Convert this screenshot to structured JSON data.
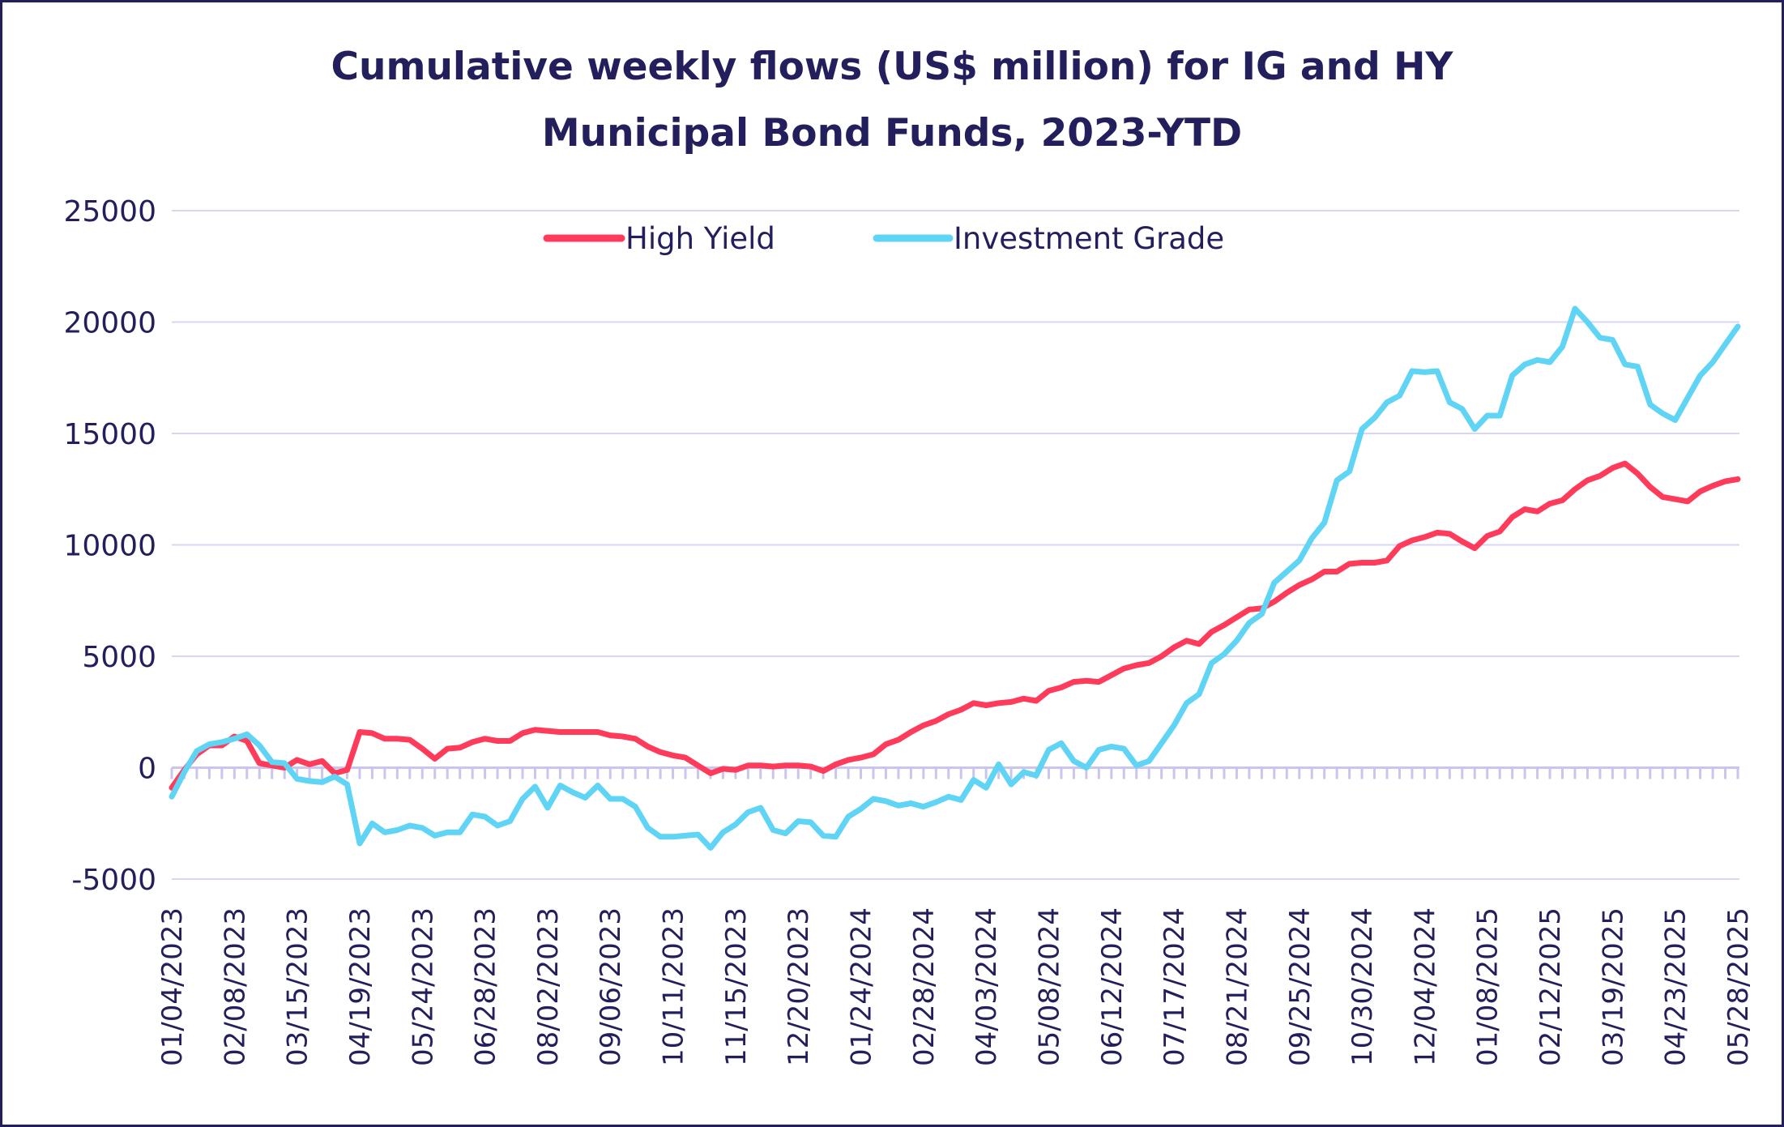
{
  "chart_data": {
    "type": "line",
    "title_line1": "Cumulative weekly flows (US$ million) for IG and HY",
    "title_line2": "Municipal Bond Funds, 2023-YTD",
    "xlabel": "",
    "ylabel": "",
    "ylim": [
      -5000,
      25000
    ],
    "y_ticks": [
      25000,
      20000,
      15000,
      10000,
      5000,
      0,
      -5000
    ],
    "y_tick_labels": [
      "25000",
      "20000",
      "15000",
      "10000",
      "5000",
      "0",
      "-5000"
    ],
    "x_tick_labels": [
      "01/04/2023",
      "02/08/2023",
      "03/15/2023",
      "04/19/2023",
      "05/24/2023",
      "06/28/2023",
      "08/02/2023",
      "09/06/2023",
      "10/11/2023",
      "11/15/2023",
      "12/20/2023",
      "01/24/2024",
      "02/28/2024",
      "04/03/2024",
      "05/08/2024",
      "06/12/2024",
      "07/17/2024",
      "08/21/2024",
      "09/25/2024",
      "10/30/2024",
      "12/04/2024",
      "01/08/2025",
      "02/12/2025",
      "03/19/2025",
      "04/23/2025",
      "05/28/2025"
    ],
    "x_tick_week_index": [
      0,
      5,
      10,
      15,
      20,
      25,
      30,
      35,
      40,
      45,
      50,
      55,
      60,
      65,
      70,
      75,
      80,
      85,
      90,
      95,
      100,
      105,
      110,
      115,
      120,
      125
    ],
    "num_weeks": 126,
    "grid": true,
    "legend_position": "top-center",
    "series": [
      {
        "name": "High Yield",
        "color": "#ff3b5c",
        "points": [
          [
            0,
            -900
          ],
          [
            1,
            -100
          ],
          [
            2,
            600
          ],
          [
            3,
            1000
          ],
          [
            4,
            1000
          ],
          [
            5,
            1400
          ],
          [
            6,
            1200
          ],
          [
            7,
            200
          ],
          [
            8,
            100
          ],
          [
            9,
            0
          ],
          [
            10,
            350
          ],
          [
            11,
            150
          ],
          [
            12,
            300
          ],
          [
            13,
            -250
          ],
          [
            14,
            -100
          ],
          [
            15,
            1600
          ],
          [
            16,
            1550
          ],
          [
            17,
            1300
          ],
          [
            18,
            1300
          ],
          [
            19,
            1250
          ],
          [
            20,
            850
          ],
          [
            21,
            400
          ],
          [
            22,
            850
          ],
          [
            23,
            900
          ],
          [
            24,
            1150
          ],
          [
            25,
            1300
          ],
          [
            26,
            1200
          ],
          [
            27,
            1200
          ],
          [
            28,
            1550
          ],
          [
            29,
            1700
          ],
          [
            30,
            1650
          ],
          [
            31,
            1600
          ],
          [
            32,
            1600
          ],
          [
            33,
            1600
          ],
          [
            34,
            1600
          ],
          [
            35,
            1450
          ],
          [
            36,
            1400
          ],
          [
            37,
            1300
          ],
          [
            38,
            950
          ],
          [
            39,
            700
          ],
          [
            40,
            550
          ],
          [
            41,
            450
          ],
          [
            42,
            100
          ],
          [
            43,
            -250
          ],
          [
            44,
            -50
          ],
          [
            45,
            -100
          ],
          [
            46,
            100
          ],
          [
            47,
            100
          ],
          [
            48,
            50
          ],
          [
            49,
            100
          ],
          [
            50,
            100
          ],
          [
            51,
            50
          ],
          [
            52,
            -150
          ],
          [
            53,
            150
          ],
          [
            54,
            350
          ],
          [
            55,
            450
          ],
          [
            56,
            600
          ],
          [
            57,
            1050
          ],
          [
            58,
            1250
          ],
          [
            59,
            1600
          ],
          [
            60,
            1900
          ],
          [
            61,
            2100
          ],
          [
            62,
            2400
          ],
          [
            63,
            2600
          ],
          [
            64,
            2900
          ],
          [
            65,
            2800
          ],
          [
            66,
            2900
          ],
          [
            67,
            2950
          ],
          [
            68,
            3100
          ],
          [
            69,
            3000
          ],
          [
            70,
            3450
          ],
          [
            71,
            3600
          ],
          [
            72,
            3850
          ],
          [
            73,
            3900
          ],
          [
            74,
            3850
          ],
          [
            75,
            4150
          ],
          [
            76,
            4450
          ],
          [
            77,
            4600
          ],
          [
            78,
            4700
          ],
          [
            79,
            5000
          ],
          [
            80,
            5400
          ],
          [
            81,
            5700
          ],
          [
            82,
            5550
          ],
          [
            83,
            6100
          ],
          [
            84,
            6400
          ],
          [
            85,
            6750
          ],
          [
            86,
            7100
          ],
          [
            87,
            7150
          ],
          [
            88,
            7450
          ],
          [
            89,
            7850
          ],
          [
            90,
            8200
          ],
          [
            91,
            8450
          ],
          [
            92,
            8800
          ],
          [
            93,
            8800
          ],
          [
            94,
            9150
          ],
          [
            95,
            9200
          ],
          [
            96,
            9200
          ],
          [
            97,
            9300
          ],
          [
            98,
            9950
          ],
          [
            99,
            10200
          ],
          [
            100,
            10350
          ],
          [
            101,
            10550
          ],
          [
            102,
            10500
          ],
          [
            103,
            10150
          ],
          [
            104,
            9850
          ],
          [
            105,
            10400
          ],
          [
            106,
            10600
          ],
          [
            107,
            11250
          ],
          [
            108,
            11600
          ],
          [
            109,
            11500
          ],
          [
            110,
            11850
          ],
          [
            111,
            12000
          ],
          [
            112,
            12500
          ],
          [
            113,
            12900
          ],
          [
            114,
            13100
          ],
          [
            115,
            13450
          ],
          [
            116,
            13650
          ],
          [
            117,
            13200
          ],
          [
            118,
            12600
          ],
          [
            119,
            12150
          ],
          [
            120,
            12050
          ],
          [
            121,
            11950
          ],
          [
            122,
            12400
          ],
          [
            123,
            12650
          ],
          [
            124,
            12850
          ],
          [
            125,
            12950
          ]
        ]
      },
      {
        "name": "Investment Grade",
        "color": "#5fd4f4",
        "points": [
          [
            0,
            -1300
          ],
          [
            1,
            -200
          ],
          [
            2,
            750
          ],
          [
            3,
            1050
          ],
          [
            4,
            1150
          ],
          [
            5,
            1300
          ],
          [
            6,
            1500
          ],
          [
            7,
            1000
          ],
          [
            8,
            250
          ],
          [
            9,
            200
          ],
          [
            10,
            -500
          ],
          [
            11,
            -600
          ],
          [
            12,
            -650
          ],
          [
            13,
            -400
          ],
          [
            14,
            -750
          ],
          [
            15,
            -3400
          ],
          [
            16,
            -2500
          ],
          [
            17,
            -2900
          ],
          [
            18,
            -2800
          ],
          [
            19,
            -2600
          ],
          [
            20,
            -2700
          ],
          [
            21,
            -3050
          ],
          [
            22,
            -2900
          ],
          [
            23,
            -2900
          ],
          [
            24,
            -2100
          ],
          [
            25,
            -2200
          ],
          [
            26,
            -2600
          ],
          [
            27,
            -2400
          ],
          [
            28,
            -1400
          ],
          [
            29,
            -850
          ],
          [
            30,
            -1800
          ],
          [
            31,
            -800
          ],
          [
            32,
            -1100
          ],
          [
            33,
            -1350
          ],
          [
            34,
            -800
          ],
          [
            35,
            -1400
          ],
          [
            36,
            -1400
          ],
          [
            37,
            -1750
          ],
          [
            38,
            -2700
          ],
          [
            39,
            -3100
          ],
          [
            40,
            -3100
          ],
          [
            41,
            -3050
          ],
          [
            42,
            -3000
          ],
          [
            43,
            -3600
          ],
          [
            44,
            -2900
          ],
          [
            45,
            -2550
          ],
          [
            46,
            -2000
          ],
          [
            47,
            -1800
          ],
          [
            48,
            -2800
          ],
          [
            49,
            -2950
          ],
          [
            50,
            -2400
          ],
          [
            51,
            -2450
          ],
          [
            52,
            -3050
          ],
          [
            53,
            -3100
          ],
          [
            54,
            -2200
          ],
          [
            55,
            -1850
          ],
          [
            56,
            -1400
          ],
          [
            57,
            -1500
          ],
          [
            58,
            -1700
          ],
          [
            59,
            -1600
          ],
          [
            60,
            -1750
          ],
          [
            61,
            -1550
          ],
          [
            62,
            -1300
          ],
          [
            63,
            -1450
          ],
          [
            64,
            -550
          ],
          [
            65,
            -900
          ],
          [
            66,
            150
          ],
          [
            67,
            -750
          ],
          [
            68,
            -200
          ],
          [
            69,
            -350
          ],
          [
            70,
            800
          ],
          [
            71,
            1100
          ],
          [
            72,
            300
          ],
          [
            73,
            0
          ],
          [
            74,
            800
          ],
          [
            75,
            950
          ],
          [
            76,
            850
          ],
          [
            77,
            100
          ],
          [
            78,
            300
          ],
          [
            79,
            1100
          ],
          [
            80,
            1900
          ],
          [
            81,
            2900
          ],
          [
            82,
            3300
          ],
          [
            83,
            4700
          ],
          [
            84,
            5100
          ],
          [
            85,
            5700
          ],
          [
            86,
            6500
          ],
          [
            87,
            6900
          ],
          [
            88,
            8300
          ],
          [
            89,
            8800
          ],
          [
            90,
            9300
          ],
          [
            91,
            10300
          ],
          [
            92,
            11000
          ],
          [
            93,
            12900
          ],
          [
            94,
            13300
          ],
          [
            95,
            15200
          ],
          [
            96,
            15700
          ],
          [
            97,
            16400
          ],
          [
            98,
            16700
          ],
          [
            99,
            17800
          ],
          [
            100,
            17750
          ],
          [
            101,
            17800
          ],
          [
            102,
            16400
          ],
          [
            103,
            16100
          ],
          [
            104,
            15200
          ],
          [
            105,
            15800
          ],
          [
            106,
            15800
          ],
          [
            107,
            17600
          ],
          [
            108,
            18100
          ],
          [
            109,
            18300
          ],
          [
            110,
            18200
          ],
          [
            111,
            18900
          ],
          [
            112,
            20600
          ],
          [
            113,
            20000
          ],
          [
            114,
            19300
          ],
          [
            115,
            19200
          ],
          [
            116,
            18100
          ],
          [
            117,
            18000
          ],
          [
            118,
            16300
          ],
          [
            119,
            15900
          ],
          [
            120,
            15600
          ],
          [
            121,
            16600
          ],
          [
            122,
            17600
          ],
          [
            123,
            18200
          ],
          [
            124,
            19000
          ],
          [
            125,
            19800
          ]
        ]
      }
    ]
  }
}
